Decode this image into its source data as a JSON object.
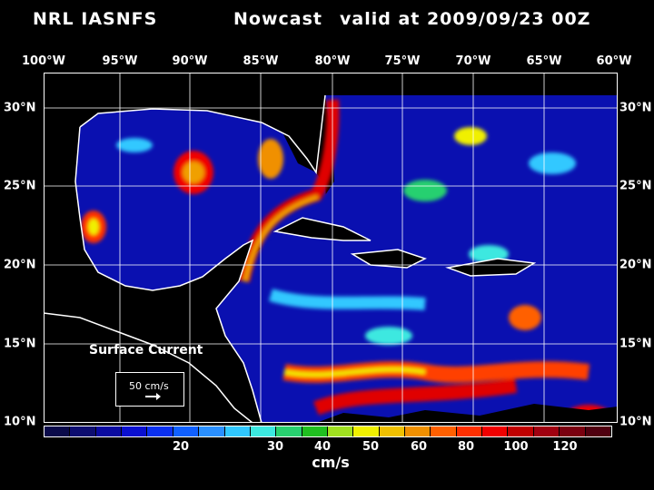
{
  "title": {
    "model": "NRL IASNFS",
    "product": "Nowcast",
    "valid": "valid at 2009/09/23 00Z"
  },
  "lon_labels": [
    "100°W",
    "95°W",
    "90°W",
    "85°W",
    "80°W",
    "75°W",
    "70°W",
    "65°W",
    "60°W"
  ],
  "lat_labels": [
    "30°N",
    "25°N",
    "20°N",
    "15°N",
    "10°N"
  ],
  "legend": {
    "field": "Surface Current",
    "reference_vector": "50 cm/s",
    "unit": "cm/s",
    "tick_labels": [
      "20",
      "30",
      "40",
      "50",
      "60",
      "80",
      "100",
      "120"
    ],
    "colors": [
      "#0a0a4a",
      "#0d0d70",
      "#0a0aa0",
      "#0a10d0",
      "#0a30f0",
      "#1060ff",
      "#2a90ff",
      "#30c8ff",
      "#3ce8e0",
      "#28d070",
      "#20c020",
      "#a0e020",
      "#f0f000",
      "#f0c000",
      "#f09000",
      "#ff6000",
      "#ff3000",
      "#f00000",
      "#c00000",
      "#a00010",
      "#7a0010",
      "#500010"
    ]
  },
  "colors": {
    "land": "#000000",
    "coast": "#ffffff",
    "grid": "#ffffff"
  }
}
